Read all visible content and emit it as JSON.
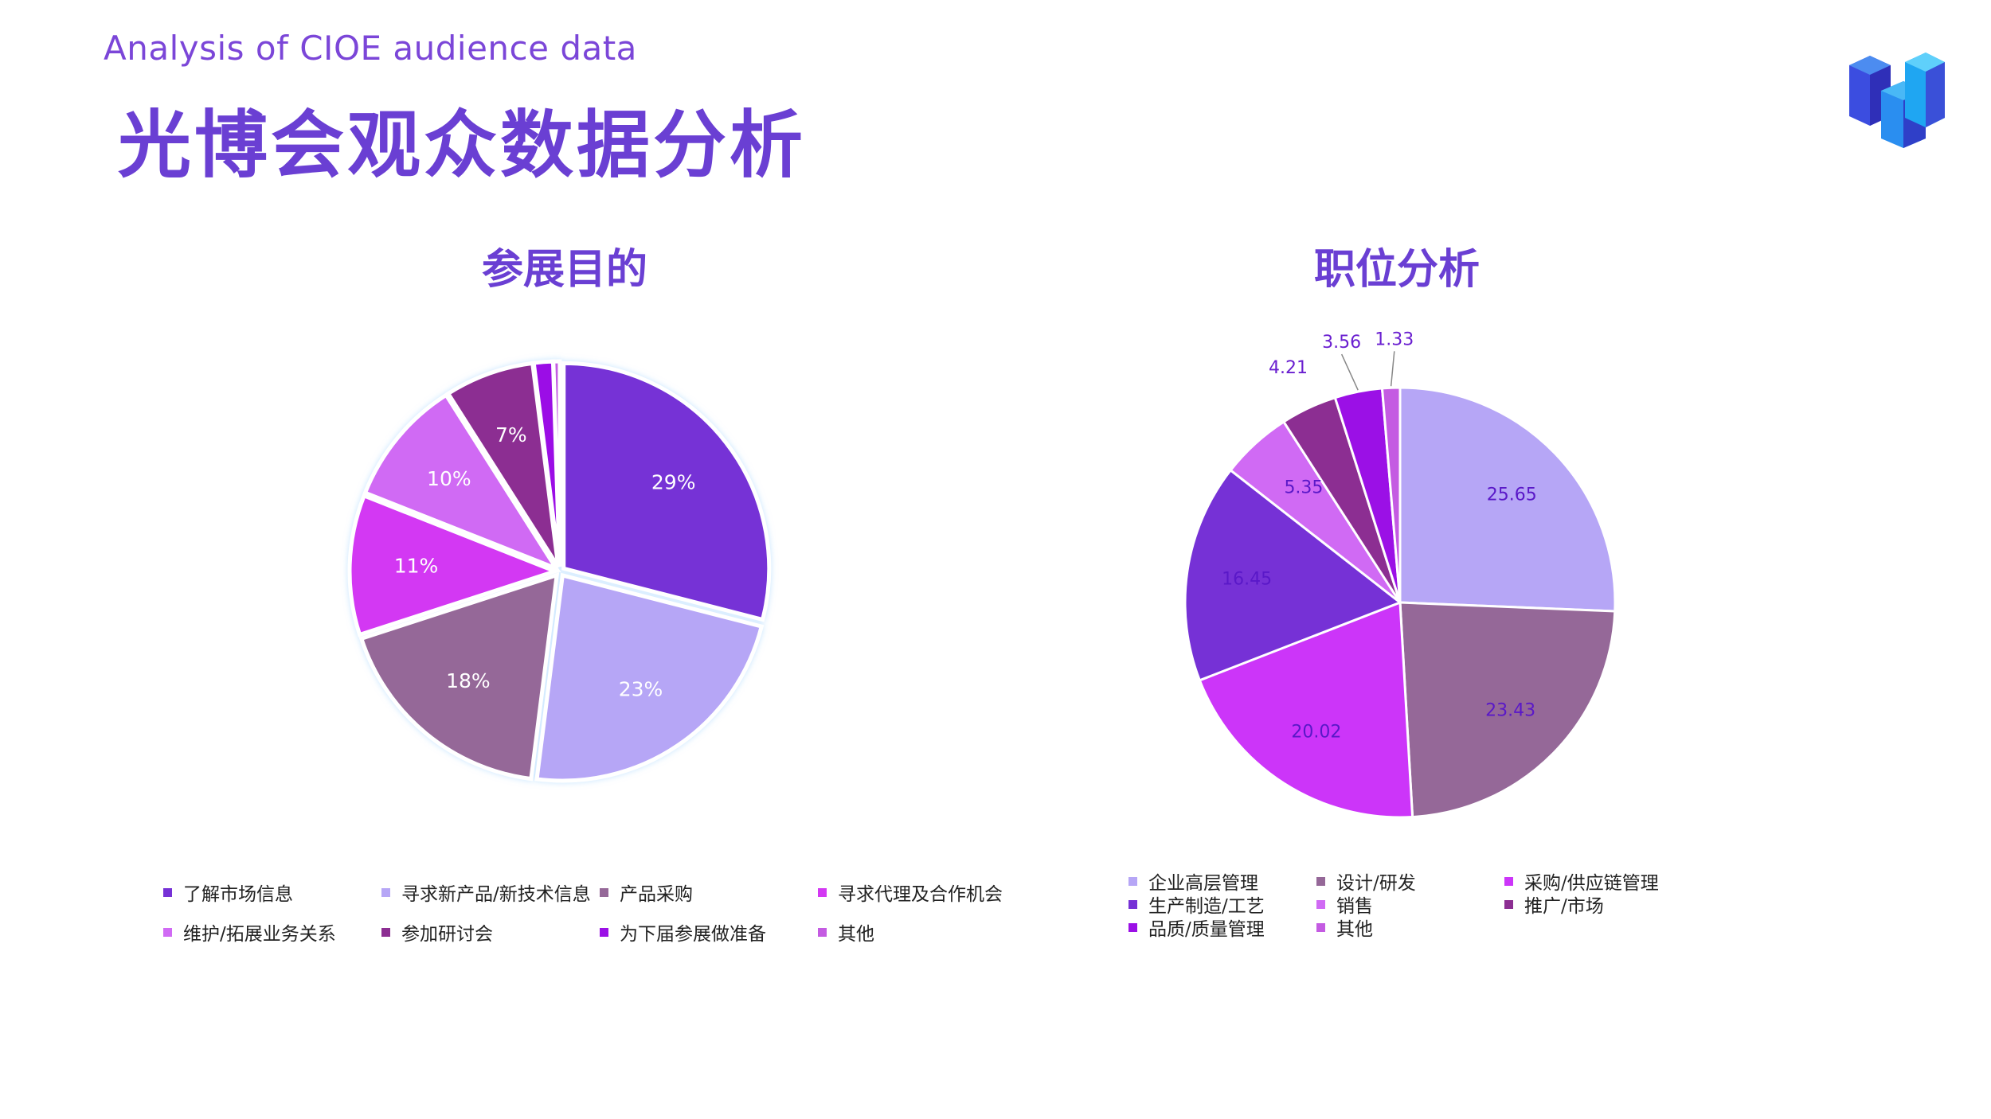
{
  "header": {
    "subtitle": "Analysis of CIOE audience data",
    "title": "光博会观众数据分析"
  },
  "logo": {
    "icon": "slh-cube-logo-icon"
  },
  "chart_data": [
    {
      "type": "pie",
      "title": "参展目的",
      "categories": [
        "了解市场信息",
        "寻求新产品/新技术信息",
        "产品采购",
        "寻求代理及合作机会",
        "维护/拓展业务关系",
        "参加研讨会",
        "为下届参展做准备",
        "其他"
      ],
      "values": [
        29,
        23,
        18,
        11,
        10,
        7,
        1.5,
        0.5
      ],
      "labels": [
        "29%",
        "23%",
        "18%",
        "11%",
        "10%",
        "7%",
        "",
        ""
      ],
      "colors": [
        "#7631d6",
        "#b6a6f6",
        "#956898",
        "#d338f3",
        "#d06af4",
        "#8c2e92",
        "#9b10e6",
        "#c45be2"
      ],
      "legend_position": "bottom"
    },
    {
      "type": "pie",
      "title": "职位分析",
      "categories": [
        "企业高层管理",
        "设计/研发",
        "采购/供应链管理",
        "生产制造/工艺",
        "销售",
        "推广/市场",
        "品质/质量管理",
        "其他"
      ],
      "values": [
        25.65,
        23.43,
        20.02,
        16.45,
        5.35,
        4.21,
        3.56,
        1.33
      ],
      "labels": [
        "25.65",
        "23.43",
        "20.02",
        "16.45",
        "5.35",
        "4.21",
        "3.56",
        "1.33"
      ],
      "colors": [
        "#b6a6f6",
        "#956898",
        "#cc35f9",
        "#7631d6",
        "#d06af4",
        "#8c2e92",
        "#9b10e6",
        "#c45be2"
      ],
      "legend_position": "bottom"
    }
  ]
}
